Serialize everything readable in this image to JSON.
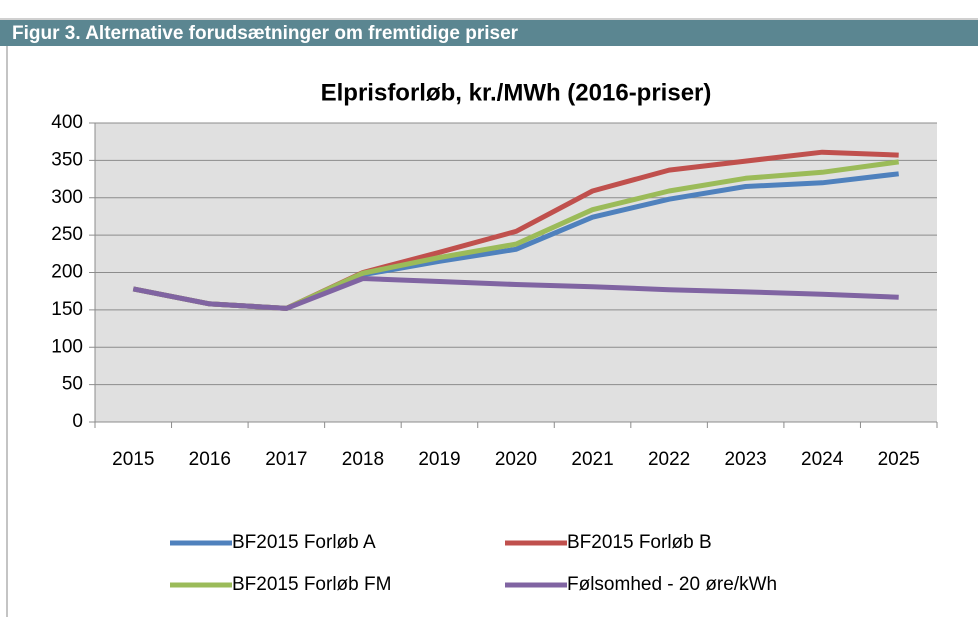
{
  "header": {
    "title": "Figur 3. Alternative forudsætninger om fremtidige priser"
  },
  "chart_data": {
    "type": "line",
    "title": "Elprisforløb, kr./MWh (2016-priser)",
    "categories": [
      "2015",
      "2016",
      "2017",
      "2018",
      "2019",
      "2020",
      "2021",
      "2022",
      "2023",
      "2024",
      "2025"
    ],
    "series": [
      {
        "name": "BF2015 Forløb A",
        "color": "#4f81bd",
        "values": [
          178,
          158,
          152,
          197,
          215,
          231,
          274,
          298,
          315,
          320,
          332
        ]
      },
      {
        "name": "BF2015 Forløb B",
        "color": "#c0504d",
        "values": [
          178,
          158,
          152,
          200,
          227,
          255,
          309,
          337,
          349,
          361,
          357
        ]
      },
      {
        "name": "BF2015 Forløb FM",
        "color": "#9bbb59",
        "values": [
          178,
          158,
          152,
          199,
          220,
          238,
          284,
          309,
          326,
          334,
          348
        ]
      },
      {
        "name": "Følsomhed - 20 øre/kWh",
        "color": "#8064a2",
        "values": [
          178,
          158,
          152,
          192,
          188,
          184,
          181,
          177,
          174,
          171,
          167
        ]
      }
    ],
    "ylim": [
      0,
      400
    ],
    "yticks": [
      0,
      50,
      100,
      150,
      200,
      250,
      300,
      350,
      400
    ],
    "grid": true
  }
}
